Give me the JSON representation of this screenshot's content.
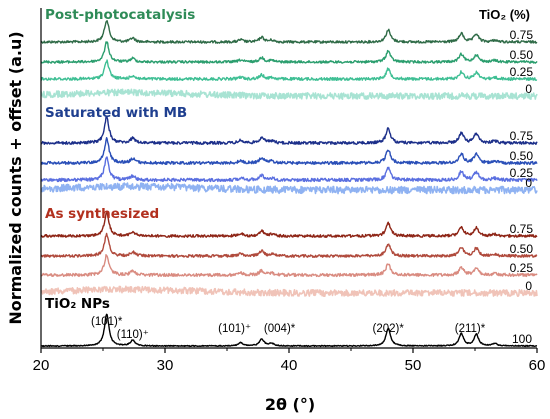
{
  "chart_data": {
    "type": "line",
    "xlabel": "2θ (°)",
    "ylabel": "Normalized counts + offset (a.u)",
    "xlim": [
      20,
      60
    ],
    "x_ticks": [
      20,
      30,
      40,
      50,
      60
    ],
    "legend_title": "TiO₂ (%)",
    "groups": [
      {
        "title": "Post-photocatalysis",
        "color": "#2e8b57",
        "series": [
          {
            "name": "0.75",
            "color": "#2f6b47"
          },
          {
            "name": "0.50",
            "color": "#2b9e6e"
          },
          {
            "name": "0.25",
            "color": "#3fbf94"
          },
          {
            "name": "0",
            "color": "#a8e3d3"
          }
        ]
      },
      {
        "title": "Saturated with MB",
        "color": "#1f3f8f",
        "series": [
          {
            "name": "0.75",
            "color": "#1c2f8a"
          },
          {
            "name": "0.50",
            "color": "#2a4fb8"
          },
          {
            "name": "0.25",
            "color": "#5a6fe0"
          },
          {
            "name": "0",
            "color": "#8fb2f2"
          }
        ]
      },
      {
        "title": "As synthesized",
        "color": "#b2301e",
        "series": [
          {
            "name": "0.75",
            "color": "#8e2516"
          },
          {
            "name": "0.50",
            "color": "#b04a3c"
          },
          {
            "name": "0.25",
            "color": "#d98b80"
          },
          {
            "name": "0",
            "color": "#f0c3b8"
          }
        ]
      },
      {
        "title": "TiO₂ NPs",
        "color": "#000000",
        "series": [
          {
            "name": "100",
            "color": "#000000"
          }
        ]
      }
    ],
    "peaks": [
      {
        "x": 25.3,
        "h": 1.0
      },
      {
        "x": 27.4,
        "h": 0.18
      },
      {
        "x": 36.1,
        "h": 0.1
      },
      {
        "x": 37.8,
        "h": 0.22
      },
      {
        "x": 38.6,
        "h": 0.08
      },
      {
        "x": 48.0,
        "h": 0.55
      },
      {
        "x": 53.9,
        "h": 0.38
      },
      {
        "x": 55.1,
        "h": 0.36
      },
      {
        "x": 56.6,
        "h": 0.08
      }
    ],
    "annotations": [
      {
        "text": "(101)*",
        "x": 25.3
      },
      {
        "text": "(110)⁺",
        "x": 27.4
      },
      {
        "text": "(101)⁺",
        "x": 36.1
      },
      {
        "text": "(004)*",
        "x": 38.6
      },
      {
        "text": "(202)*",
        "x": 48.0
      },
      {
        "text": "(211)*",
        "x": 54.6
      }
    ]
  }
}
